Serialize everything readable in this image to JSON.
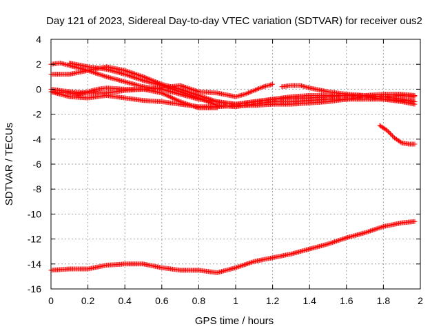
{
  "chart_data": {
    "type": "scatter",
    "title": "Day 121 of 2023, Sidereal Day-to-day VTEC variation (SDTVAR) for receiver ous2",
    "xlabel": "GPS time / hours",
    "ylabel": "SDTVAR / TECUs",
    "xlim": [
      0,
      2
    ],
    "ylim": [
      -16,
      4
    ],
    "xticks": [
      0,
      0.2,
      0.4,
      0.6,
      0.8,
      1,
      1.2,
      1.4,
      1.6,
      1.8,
      2
    ],
    "xtick_labels": [
      "0",
      "0.2",
      "0.4",
      "0.6",
      "0.8",
      "1",
      "1.2",
      "1.4",
      "1.6",
      "1.8",
      "2"
    ],
    "yticks": [
      4,
      2,
      0,
      -2,
      -4,
      -6,
      -8,
      -10,
      -12,
      -14,
      -16
    ],
    "ytick_labels": [
      "4",
      "2",
      "0",
      "-2",
      "-4",
      "-6",
      "-8",
      "-10",
      "-12",
      "-14",
      "-16"
    ],
    "grid": true,
    "marker": "+",
    "color": "#ff0000",
    "series": [
      {
        "name": "s1",
        "x": [
          0,
          0.1,
          0.2,
          0.3,
          0.4,
          0.5,
          0.6,
          0.7,
          0.8,
          0.9,
          1.0,
          1.1,
          1.2,
          1.3,
          1.4,
          1.5,
          1.6,
          1.7,
          1.8,
          1.9,
          1.97
        ],
        "y": [
          -14.5,
          -14.4,
          -14.4,
          -14.1,
          -14.0,
          -14.0,
          -14.3,
          -14.5,
          -14.5,
          -14.7,
          -14.3,
          -13.8,
          -13.5,
          -13.2,
          -12.8,
          -12.4,
          -11.9,
          -11.5,
          -11.0,
          -10.7,
          -10.6
        ]
      },
      {
        "name": "s2",
        "x": [
          1.78,
          1.82,
          1.86,
          1.9,
          1.94,
          1.97
        ],
        "y": [
          -2.9,
          -3.3,
          -3.9,
          -4.3,
          -4.4,
          -4.4
        ]
      },
      {
        "name": "s3",
        "x": [
          0,
          0.05,
          0.1,
          0.2,
          0.3,
          0.4,
          0.5,
          0.6,
          0.7,
          0.8,
          0.9,
          1.0,
          1.1,
          1.2,
          1.3,
          1.4,
          1.5,
          1.6,
          1.7,
          1.8,
          1.9,
          1.97
        ],
        "y": [
          2.0,
          2.1,
          1.9,
          1.5,
          1.0,
          0.6,
          0.2,
          0.0,
          -0.4,
          -0.8,
          -1.0,
          -1.2,
          -1.0,
          -0.8,
          -0.7,
          -0.7,
          -0.6,
          -0.5,
          -0.5,
          -0.4,
          -0.4,
          -0.5
        ]
      },
      {
        "name": "s4",
        "x": [
          0.1,
          0.2,
          0.3,
          0.4,
          0.5,
          0.6,
          0.7,
          0.8,
          0.9,
          1.0,
          1.1,
          1.2,
          1.3,
          1.4,
          1.5,
          1.6,
          1.7,
          1.8,
          1.9,
          1.97
        ],
        "y": [
          2.1,
          1.8,
          1.6,
          1.2,
          0.7,
          0.3,
          -0.2,
          -0.7,
          -1.3,
          -1.4,
          -1.2,
          -1.0,
          -1.0,
          -0.9,
          -0.8,
          -0.8,
          -0.8,
          -0.8,
          -0.9,
          -1.0
        ]
      },
      {
        "name": "s5",
        "x": [
          0,
          0.1,
          0.2,
          0.3,
          0.4,
          0.5,
          0.6,
          0.7,
          0.8,
          0.9,
          1.0,
          1.1,
          1.2,
          1.3,
          1.4,
          1.5,
          1.6,
          1.7,
          1.8,
          1.9,
          1.97
        ],
        "y": [
          1.2,
          1.2,
          1.5,
          1.8,
          1.5,
          1.0,
          0.4,
          0.0,
          -0.5,
          -1.0,
          -1.2,
          -1.0,
          -0.8,
          -0.6,
          -0.5,
          -0.5,
          -0.5,
          -0.6,
          -0.8,
          -1.0,
          -1.2
        ]
      },
      {
        "name": "s6",
        "x": [
          0,
          0.1,
          0.2,
          0.3,
          0.4,
          0.5,
          0.6,
          0.7,
          0.8,
          0.9,
          1.0,
          1.1,
          1.2,
          1.3,
          1.4,
          1.5,
          1.6,
          1.7,
          1.8,
          1.9,
          1.97
        ],
        "y": [
          -0.2,
          -0.6,
          -0.7,
          -0.5,
          -0.7,
          -0.9,
          -1.0,
          -1.2,
          -1.4,
          -1.4,
          -1.3,
          -1.3,
          -1.2,
          -1.2,
          -1.1,
          -1.0,
          -0.8,
          -0.6,
          -0.6,
          -0.8,
          -1.0
        ]
      },
      {
        "name": "s7",
        "x": [
          0,
          0.1,
          0.2,
          0.3,
          0.4,
          0.5,
          0.6,
          0.7,
          0.8,
          0.9,
          1.0,
          1.05,
          1.1,
          1.15,
          1.2
        ],
        "y": [
          0.0,
          -0.2,
          -0.3,
          -0.3,
          -0.1,
          0.0,
          0.1,
          0.3,
          -0.2,
          -0.3,
          -0.6,
          -0.4,
          -0.1,
          0.2,
          0.4
        ]
      },
      {
        "name": "s8",
        "x": [
          1.25,
          1.3,
          1.35,
          1.4,
          1.5,
          1.6,
          1.7,
          1.8,
          1.9,
          1.97
        ],
        "y": [
          0.2,
          0.3,
          0.3,
          0.1,
          -0.2,
          -0.4,
          -0.5,
          -0.6,
          -0.5,
          -0.6
        ]
      },
      {
        "name": "s9",
        "x": [
          0,
          0.1,
          0.15,
          0.2,
          0.25,
          0.3,
          0.4,
          0.5,
          0.6,
          0.7,
          0.8,
          0.9
        ],
        "y": [
          -0.2,
          -0.3,
          -0.4,
          -0.2,
          0.0,
          0.1,
          0.0,
          0.0,
          -0.3,
          -1.0,
          -1.5,
          -1.5
        ]
      }
    ]
  }
}
